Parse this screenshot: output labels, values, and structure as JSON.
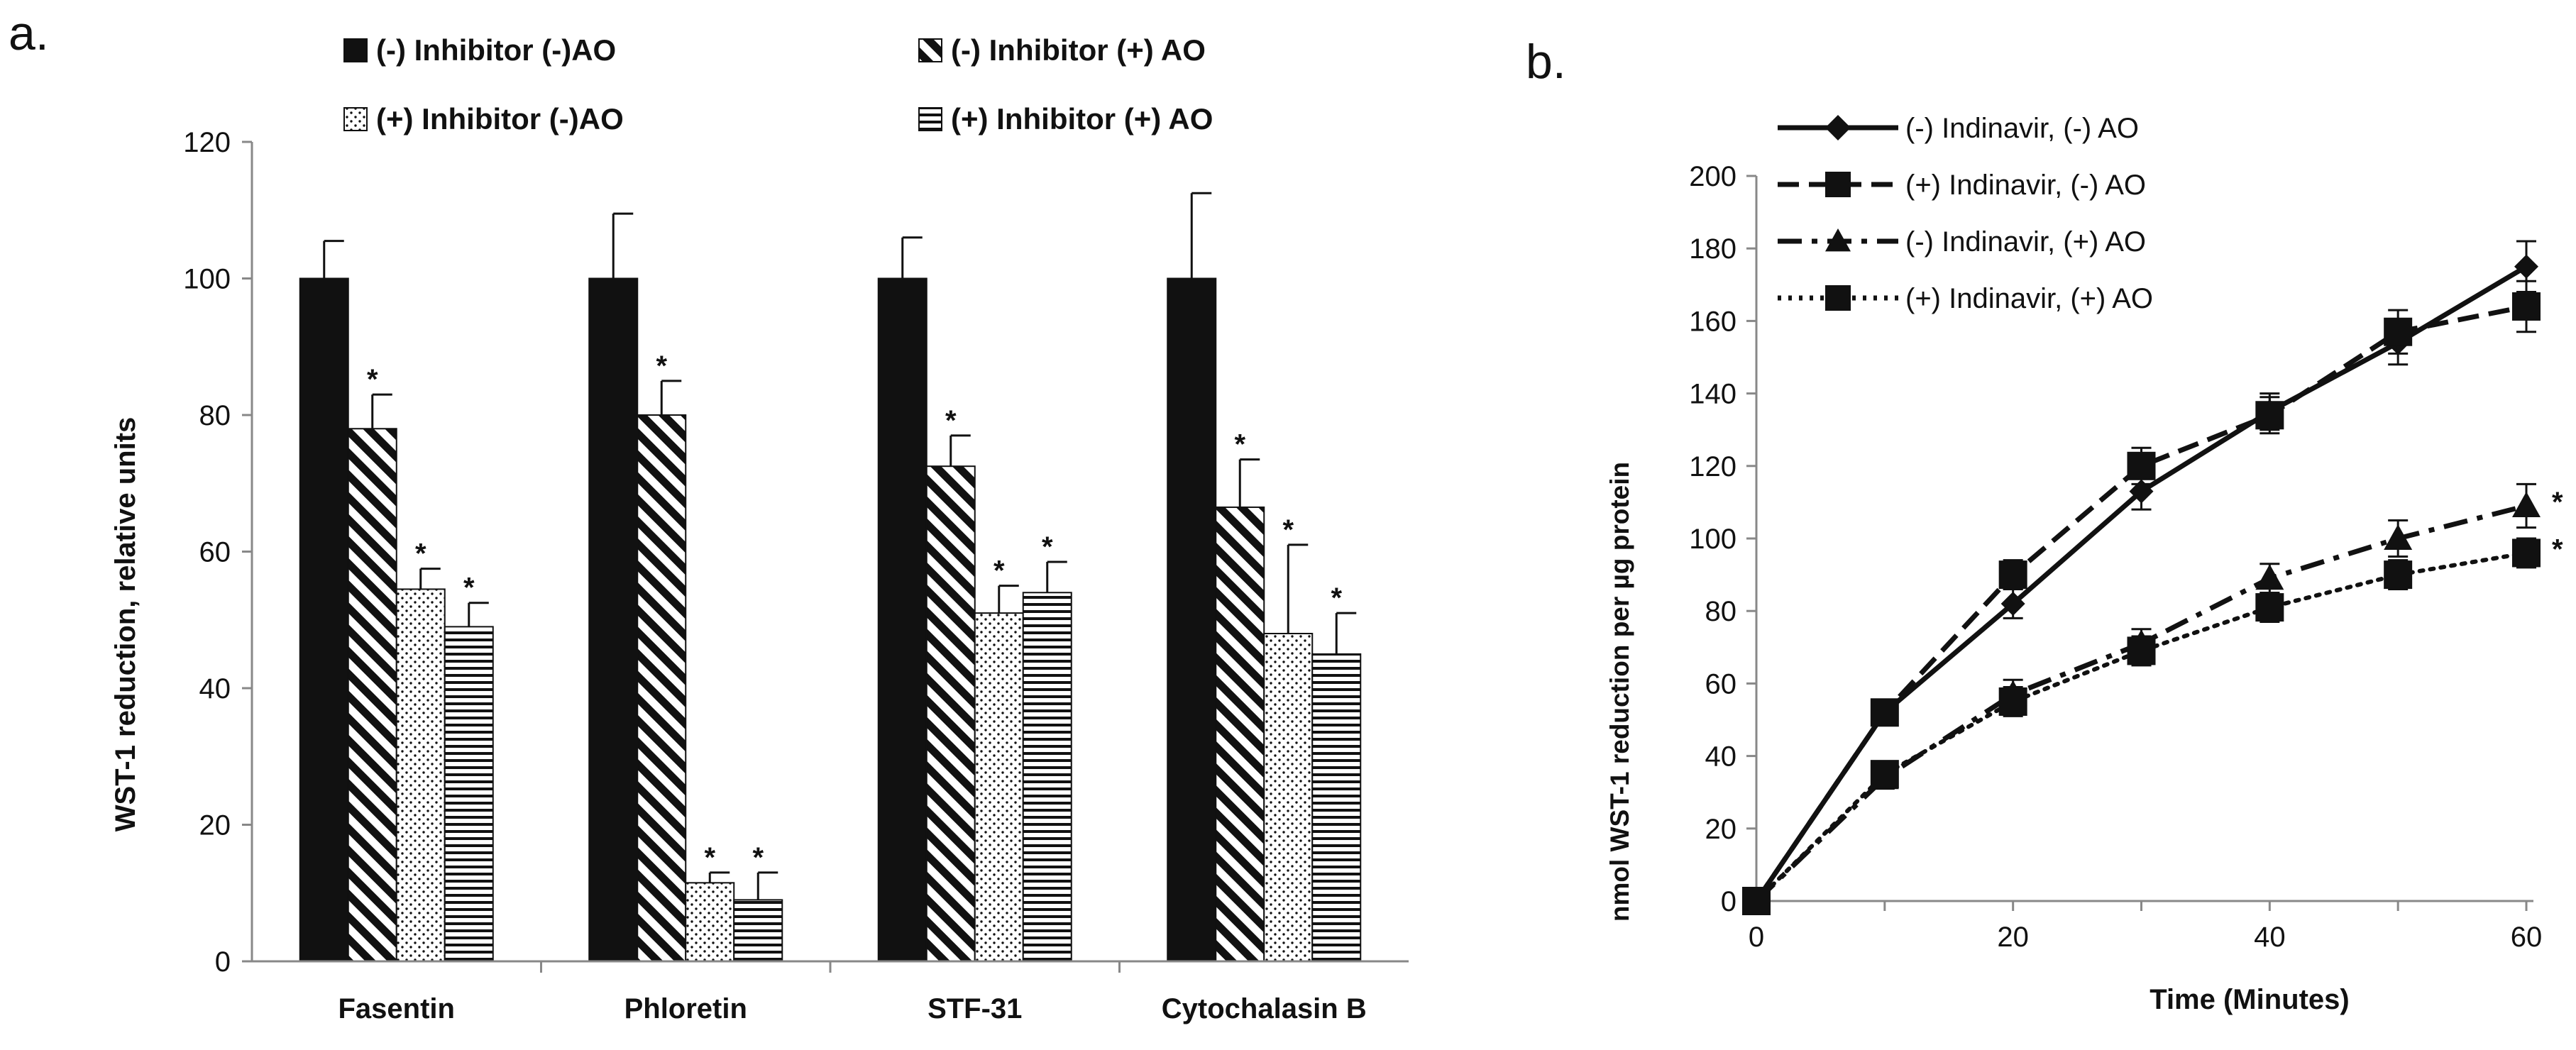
{
  "chart_data": [
    {
      "type": "bar",
      "panel_label": "a.",
      "title": "",
      "xlabel": "",
      "ylabel": "WST-1 reduction, relative units",
      "ylim": [
        0,
        120
      ],
      "yticks": [
        "0",
        "20",
        "40",
        "60",
        "80",
        "100",
        "120"
      ],
      "categories": [
        "Fasentin",
        "Phloretin",
        "STF-31",
        "Cytochalasin B"
      ],
      "legend_position": "top",
      "significance_marker": "*",
      "series": [
        {
          "name": "(-) Inhibitor (-)AO",
          "pattern": "solid",
          "values": [
            100,
            100,
            100,
            100
          ],
          "errors": [
            5.5,
            9.5,
            6,
            12.5
          ],
          "significant": [
            false,
            false,
            false,
            false
          ]
        },
        {
          "name": "(-) Inhibitor (+) AO",
          "pattern": "diagonal",
          "values": [
            78,
            80,
            72.5,
            66.5
          ],
          "errors": [
            5,
            5,
            4.5,
            7
          ],
          "significant": [
            true,
            true,
            true,
            true
          ]
        },
        {
          "name": "(+) Inhibitor (-)AO",
          "pattern": "dotted",
          "values": [
            54.5,
            11.5,
            51,
            48
          ],
          "errors": [
            3,
            1.5,
            4,
            13
          ],
          "significant": [
            true,
            true,
            true,
            true
          ]
        },
        {
          "name": "(+) Inhibitor (+) AO",
          "pattern": "horizontal",
          "values": [
            49,
            9,
            54,
            45
          ],
          "errors": [
            3.5,
            4,
            4.5,
            6
          ],
          "significant": [
            true,
            true,
            true,
            true
          ]
        }
      ]
    },
    {
      "type": "line",
      "panel_label": "b.",
      "title": "",
      "xlabel": "Time (Minutes)",
      "ylabel": "nmol WST-1 reduction per µg protein",
      "xlim": [
        0,
        60
      ],
      "ylim": [
        0,
        200
      ],
      "xticks": [
        "0",
        "20",
        "40",
        "60"
      ],
      "yticks": [
        "0",
        "20",
        "40",
        "60",
        "80",
        "100",
        "120",
        "140",
        "160",
        "180",
        "200"
      ],
      "x": [
        0,
        10,
        20,
        30,
        40,
        50,
        60
      ],
      "legend_position": "top-left",
      "significance_marker": "*",
      "series": [
        {
          "name": "(-) Indinavir, (-) AO",
          "line": "solid",
          "marker": "diamond",
          "values": [
            0,
            52,
            82,
            113,
            135,
            154,
            175
          ],
          "errors": [
            1,
            3,
            4,
            5,
            5,
            6,
            7
          ],
          "significant": false
        },
        {
          "name": "(+) Indinavir, (-) AO",
          "line": "dashed",
          "marker": "square",
          "values": [
            0,
            52,
            90,
            120,
            134,
            157,
            164
          ],
          "errors": [
            1,
            3,
            4,
            5,
            5,
            6,
            7
          ],
          "significant": false
        },
        {
          "name": "(-) Indinavir, (+) AO",
          "line": "dashdot",
          "marker": "triangle",
          "values": [
            0,
            34,
            57,
            71,
            89,
            100,
            109
          ],
          "errors": [
            1,
            3,
            4,
            4,
            4,
            5,
            6
          ],
          "significant": true
        },
        {
          "name": "(+) Indinavir, (+) AO",
          "line": "dotted",
          "marker": "square",
          "values": [
            0,
            35,
            55,
            69,
            81,
            90,
            96
          ],
          "errors": [
            1,
            3,
            4,
            4,
            4,
            4,
            4
          ],
          "significant": true
        }
      ]
    }
  ]
}
